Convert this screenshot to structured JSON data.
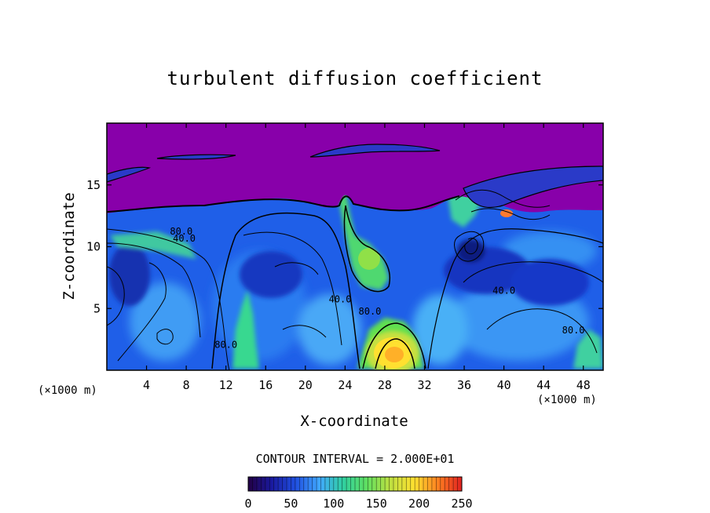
{
  "chart_data": {
    "type": "heatmap",
    "title": "turbulent diffusion coefficient",
    "xlabel": "X-coordinate",
    "ylabel": "Z-coordinate",
    "x_unit": "(×1000 m)",
    "z_unit": "(×1000 m)",
    "xlim": [
      0,
      50
    ],
    "ylim": [
      0,
      20
    ],
    "x_ticks": [
      4,
      8,
      12,
      16,
      20,
      24,
      28,
      32,
      36,
      40,
      44,
      48
    ],
    "y_ticks": [
      5,
      10,
      15
    ],
    "contour_interval_text": "CONTOUR INTERVAL = 2.000E+01",
    "contour_interval": 20,
    "contour_labels": [
      {
        "text": "80.0",
        "x": 7.5,
        "z": 11.0
      },
      {
        "text": "40.0",
        "x": 7.8,
        "z": 10.4
      },
      {
        "text": "80.0",
        "x": 12.0,
        "z": 1.8
      },
      {
        "text": "40.0",
        "x": 23.5,
        "z": 5.5
      },
      {
        "text": "80.0",
        "x": 26.5,
        "z": 4.5
      },
      {
        "text": "40.0",
        "x": 40.0,
        "z": 6.2
      },
      {
        "text": "80.0",
        "x": 47.0,
        "z": 3.0
      }
    ],
    "colorbar": {
      "min": 0,
      "max": 250,
      "ticks": [
        "0",
        "50",
        "100",
        "150",
        "200",
        "250"
      ],
      "colors": [
        "#220044",
        "#1a1aa0",
        "#2050e0",
        "#40a8ff",
        "#30d0a0",
        "#60e060",
        "#c0e040",
        "#ffe030",
        "#ff8020",
        "#e02020"
      ]
    },
    "field_description": {
      "upper_region_value": 0,
      "upper_region_color": "#8800aa",
      "boundary_layer_top_z": 12.5,
      "typical_lower_value": 40,
      "max_features": [
        {
          "x": 29.5,
          "z": 1.5,
          "value": 200
        },
        {
          "x": 26.5,
          "z": 9.5,
          "value": 100
        },
        {
          "x": 13.5,
          "z": 3.0,
          "value": 100
        }
      ]
    }
  }
}
